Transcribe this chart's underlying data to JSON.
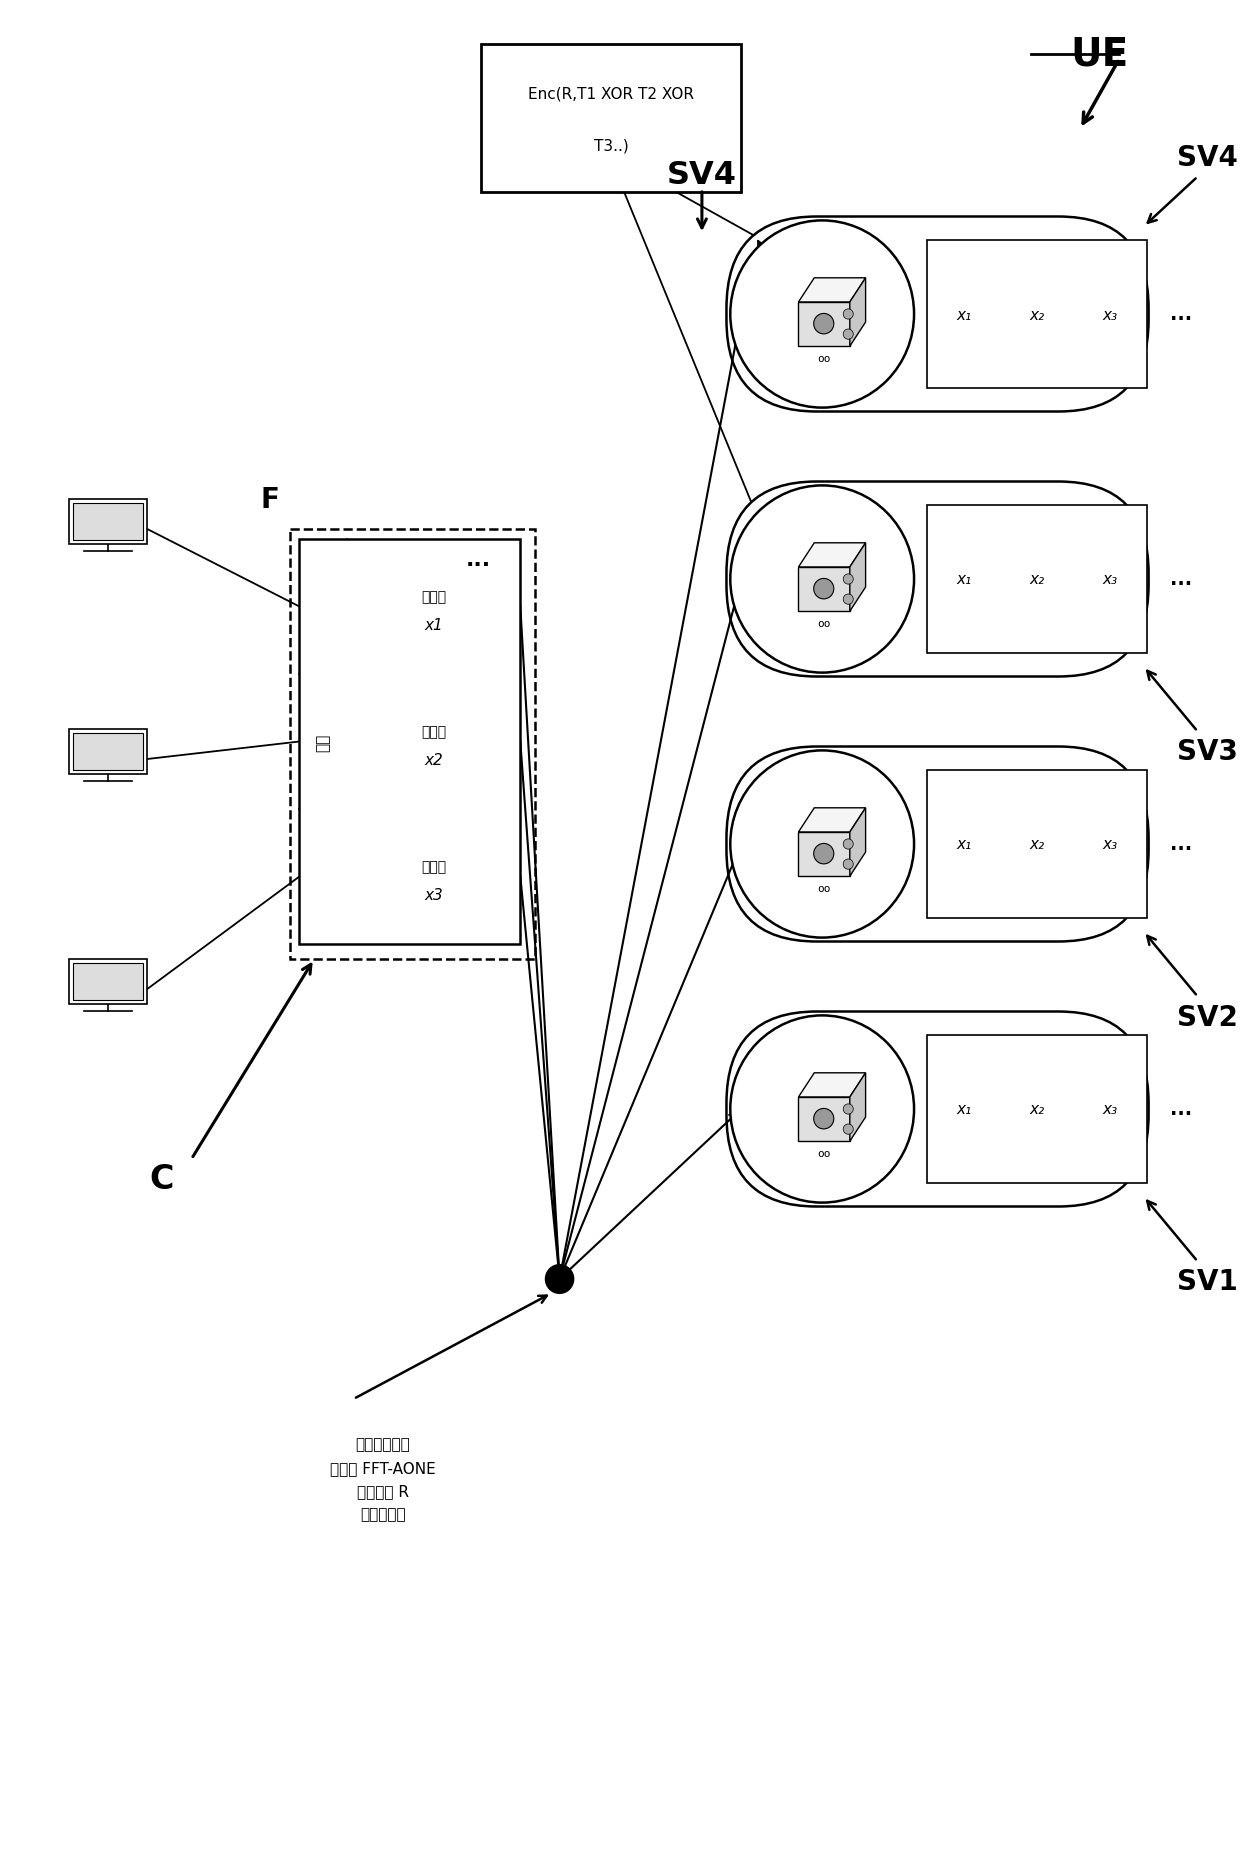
{
  "bg_color": "#ffffff",
  "fig_width": 12.4,
  "fig_height": 18.74,
  "ue_label": "UE",
  "f_label": "F",
  "c_label": "C",
  "sv4_top_label": "SV4",
  "sv_labels": [
    "SV1",
    "SV2",
    "SV3",
    "SV4"
  ],
  "enc_line1": "Enc(R,T1 XOR T2 XOR",
  "enc_line2": "T3..)",
  "chunk_labels_top": [
    "数据片",
    "数据片",
    "数据片"
  ],
  "chunk_labels_bot": [
    "x1",
    "x2",
    "x3"
  ],
  "file_label": "文件",
  "bottom_text": "文件数据片，\n均使用 FFT-AONE\n和随机值 R\n进行了加密",
  "ellipsis": "...",
  "x_labels": [
    "x₁",
    "x₂",
    "x₃"
  ]
}
